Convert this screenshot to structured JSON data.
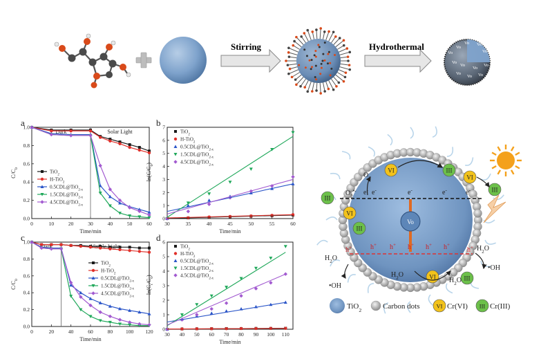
{
  "colors": {
    "tio2": "#1a1a1a",
    "htio2": "#e0302a",
    "cdl05": "#2a55c8",
    "cdl15": "#1fa85a",
    "cdl45": "#a25ad0",
    "sphere": "#7fa3cc",
    "arrow_fill": "#e6e6e6",
    "cr6": "#f2c21b",
    "cr3": "#6cc04a",
    "sun": "#f4a11c"
  },
  "synthesis": {
    "step1_label": "Stirring",
    "step2_label": "Hydrothermal",
    "vo_label": "Vo"
  },
  "panels": {
    "a": {
      "letter": "a",
      "region1": "Dark",
      "region2": "Solar Light",
      "xlabel": "Time/min",
      "ylabel": "C/C",
      "ylabel_sub": "0"
    },
    "b": {
      "letter": "b",
      "xlabel": "Time/min",
      "ylabel": "-ln(C/C",
      "ylabel_sub": "0",
      "ylabel_end": ")"
    },
    "c": {
      "letter": "c",
      "region1": "Dark",
      "region2": "Visible Light",
      "xlabel": "Time/min",
      "ylabel": "C/C",
      "ylabel_sub": "0"
    },
    "d": {
      "letter": "d",
      "xlabel": "Time/min",
      "ylabel": "-ln(C",
      "ylabel_sub": "t",
      "ylabel_end": "/C",
      "ylabel_sub2": "0",
      "ylabel_end2": ")"
    }
  },
  "legend": [
    {
      "base": "TiO",
      "sub": "2",
      "key": "tio2"
    },
    {
      "base": "H-TiO",
      "sub": "2",
      "key": "htio2"
    },
    {
      "base": "0.5CDL@TiO",
      "sub": "2-x",
      "key": "cdl05"
    },
    {
      "base": "1.5CDL@TiO",
      "sub": "2-x",
      "key": "cdl15"
    },
    {
      "base": "4.5CDL@TiO",
      "sub": "2-x",
      "key": "cdl45"
    }
  ],
  "chart_data": [
    {
      "panel": "a",
      "type": "line",
      "xlim": [
        0,
        60
      ],
      "ylim": [
        0,
        1.0
      ],
      "xticks": [
        0,
        10,
        20,
        30,
        40,
        50,
        60
      ],
      "yticks": [
        0.0,
        0.2,
        0.4,
        0.6,
        0.8,
        1.0
      ],
      "x": [
        0,
        10,
        20,
        30,
        35,
        40,
        45,
        50,
        55,
        60
      ],
      "series": [
        {
          "name": "TiO2",
          "key": "tio2",
          "values": [
            1.0,
            0.97,
            0.97,
            0.97,
            0.9,
            0.87,
            0.84,
            0.81,
            0.78,
            0.74
          ]
        },
        {
          "name": "H-TiO2",
          "key": "htio2",
          "values": [
            1.0,
            0.96,
            0.96,
            0.96,
            0.89,
            0.85,
            0.82,
            0.78,
            0.75,
            0.72
          ]
        },
        {
          "name": "0.5CDL@TiO2-x",
          "key": "cdl05",
          "values": [
            1.0,
            0.93,
            0.92,
            0.92,
            0.36,
            0.24,
            0.17,
            0.13,
            0.1,
            0.07
          ]
        },
        {
          "name": "1.5CDL@TiO2-x",
          "key": "cdl15",
          "values": [
            1.0,
            0.92,
            0.91,
            0.91,
            0.28,
            0.14,
            0.06,
            0.03,
            0.02,
            0.01
          ]
        },
        {
          "name": "4.5CDL@TiO2-x",
          "key": "cdl45",
          "values": [
            1.0,
            0.92,
            0.91,
            0.91,
            0.58,
            0.32,
            0.2,
            0.12,
            0.08,
            0.04
          ]
        }
      ]
    },
    {
      "panel": "b",
      "type": "scatter",
      "xlim": [
        30,
        60
      ],
      "ylim": [
        0,
        7
      ],
      "xticks": [
        30,
        35,
        40,
        45,
        50,
        55,
        60
      ],
      "yticks": [
        0,
        1,
        2,
        3,
        4,
        5,
        6,
        7
      ],
      "x": [
        30,
        35,
        40,
        45,
        50,
        55,
        60
      ],
      "series": [
        {
          "name": "TiO2",
          "key": "tio2",
          "values": [
            0.0,
            0.05,
            0.1,
            0.14,
            0.18,
            0.22,
            0.27
          ]
        },
        {
          "name": "H-TiO2",
          "key": "htio2",
          "values": [
            0.0,
            0.06,
            0.12,
            0.16,
            0.2,
            0.25,
            0.3
          ]
        },
        {
          "name": "0.5CDL@TiO2-x",
          "key": "cdl05",
          "values": [
            0.0,
            1.0,
            1.4,
            1.7,
            1.97,
            2.3,
            2.66
          ]
        },
        {
          "name": "1.5CDL@TiO2-x",
          "key": "cdl15",
          "values": [
            0.0,
            1.2,
            1.9,
            2.8,
            3.8,
            5.3,
            6.6
          ]
        },
        {
          "name": "4.5CDL@TiO2-x",
          "key": "cdl45",
          "values": [
            0.0,
            0.55,
            1.1,
            1.6,
            2.1,
            2.5,
            3.2
          ]
        }
      ],
      "fits": [
        {
          "key": "tio2",
          "from": [
            30,
            0.02
          ],
          "to": [
            60,
            0.27
          ]
        },
        {
          "key": "htio2",
          "from": [
            30,
            0.05
          ],
          "to": [
            60,
            0.3
          ]
        },
        {
          "key": "cdl05",
          "from": [
            30,
            0.55
          ],
          "to": [
            60,
            2.66
          ]
        },
        {
          "key": "cdl15",
          "from": [
            30,
            0.1
          ],
          "to": [
            60,
            6.3
          ]
        },
        {
          "key": "cdl45",
          "from": [
            30,
            0.35
          ],
          "to": [
            60,
            3.0
          ]
        }
      ]
    },
    {
      "panel": "c",
      "type": "line",
      "xlim": [
        0,
        120
      ],
      "ylim": [
        0,
        1.0
      ],
      "xticks": [
        0,
        20,
        40,
        60,
        80,
        100,
        120
      ],
      "yticks": [
        0.0,
        0.2,
        0.4,
        0.6,
        0.8,
        1.0
      ],
      "x": [
        0,
        10,
        20,
        30,
        40,
        50,
        60,
        70,
        80,
        90,
        100,
        110,
        120
      ],
      "series": [
        {
          "name": "TiO2",
          "key": "tio2",
          "values": [
            1.0,
            0.97,
            0.97,
            0.97,
            0.96,
            0.96,
            0.95,
            0.95,
            0.94,
            0.94,
            0.94,
            0.93,
            0.93
          ]
        },
        {
          "name": "H-TiO2",
          "key": "htio2",
          "values": [
            1.0,
            0.97,
            0.97,
            0.97,
            0.96,
            0.95,
            0.94,
            0.93,
            0.92,
            0.91,
            0.9,
            0.89,
            0.88
          ]
        },
        {
          "name": "0.5CDL@TiO2-x",
          "key": "cdl05",
          "values": [
            1.0,
            0.94,
            0.93,
            0.93,
            0.49,
            0.4,
            0.33,
            0.28,
            0.24,
            0.21,
            0.19,
            0.17,
            0.15
          ]
        },
        {
          "name": "1.5CDL@TiO2-x",
          "key": "cdl15",
          "values": [
            1.0,
            0.93,
            0.92,
            0.92,
            0.36,
            0.2,
            0.12,
            0.07,
            0.05,
            0.03,
            0.02,
            0.01,
            0.01
          ]
        },
        {
          "name": "4.5CDL@TiO2-x",
          "key": "cdl45",
          "values": [
            1.0,
            0.93,
            0.92,
            0.92,
            0.52,
            0.35,
            0.25,
            0.17,
            0.12,
            0.08,
            0.05,
            0.03,
            0.02
          ]
        }
      ]
    },
    {
      "panel": "d",
      "type": "scatter",
      "xlim": [
        30,
        115
      ],
      "ylim": [
        0,
        6
      ],
      "xticks": [
        30,
        40,
        50,
        60,
        70,
        80,
        90,
        100,
        110
      ],
      "yticks": [
        0,
        1,
        2,
        3,
        4,
        5,
        6
      ],
      "x": [
        30,
        40,
        50,
        60,
        70,
        80,
        90,
        100,
        110
      ],
      "series": [
        {
          "name": "TiO2",
          "key": "tio2",
          "values": [
            0.0,
            0.02,
            0.03,
            0.04,
            0.05,
            0.05,
            0.06,
            0.06,
            0.07
          ]
        },
        {
          "name": "H-TiO2",
          "key": "htio2",
          "values": [
            0.0,
            0.02,
            0.03,
            0.04,
            0.04,
            0.05,
            0.05,
            0.06,
            0.06
          ]
        },
        {
          "name": "0.5CDL@TiO2-x",
          "key": "cdl05",
          "values": [
            0.0,
            0.7,
            0.9,
            1.1,
            1.25,
            1.4,
            1.55,
            1.7,
            1.85
          ]
        },
        {
          "name": "1.5CDL@TiO2-x",
          "key": "cdl15",
          "values": [
            0.0,
            1.0,
            1.7,
            2.3,
            2.9,
            3.5,
            4.2,
            4.9,
            5.7
          ]
        },
        {
          "name": "4.5CDL@TiO2-x",
          "key": "cdl45",
          "values": [
            0.0,
            0.65,
            1.0,
            1.4,
            1.8,
            2.3,
            2.8,
            3.2,
            3.8
          ]
        }
      ],
      "fits": [
        {
          "key": "tio2",
          "from": [
            30,
            0.01
          ],
          "to": [
            110,
            0.07
          ]
        },
        {
          "key": "htio2",
          "from": [
            30,
            0.02
          ],
          "to": [
            110,
            0.06
          ]
        },
        {
          "key": "cdl05",
          "from": [
            30,
            0.5
          ],
          "to": [
            110,
            1.85
          ]
        },
        {
          "key": "cdl15",
          "from": [
            30,
            0.25
          ],
          "to": [
            110,
            5.3
          ]
        },
        {
          "key": "cdl45",
          "from": [
            30,
            0.3
          ],
          "to": [
            110,
            3.8
          ]
        }
      ]
    }
  ],
  "mechanism": {
    "vo": "Vo",
    "e_minus": "e",
    "h_plus": "h",
    "vi": "VI",
    "iii": "III",
    "o2": "O",
    "o2_sub": "2",
    "o2_rad": "•-",
    "h2o": "H",
    "h2o_sub": "2",
    "h2o_end": "O",
    "oh": "•OH",
    "legend_tio2": "TiO",
    "legend_tio2_sub": "2",
    "legend_cd": "Carbon dots",
    "legend_cr6": "Cr(VI)",
    "legend_cr3": "Cr(III)"
  }
}
